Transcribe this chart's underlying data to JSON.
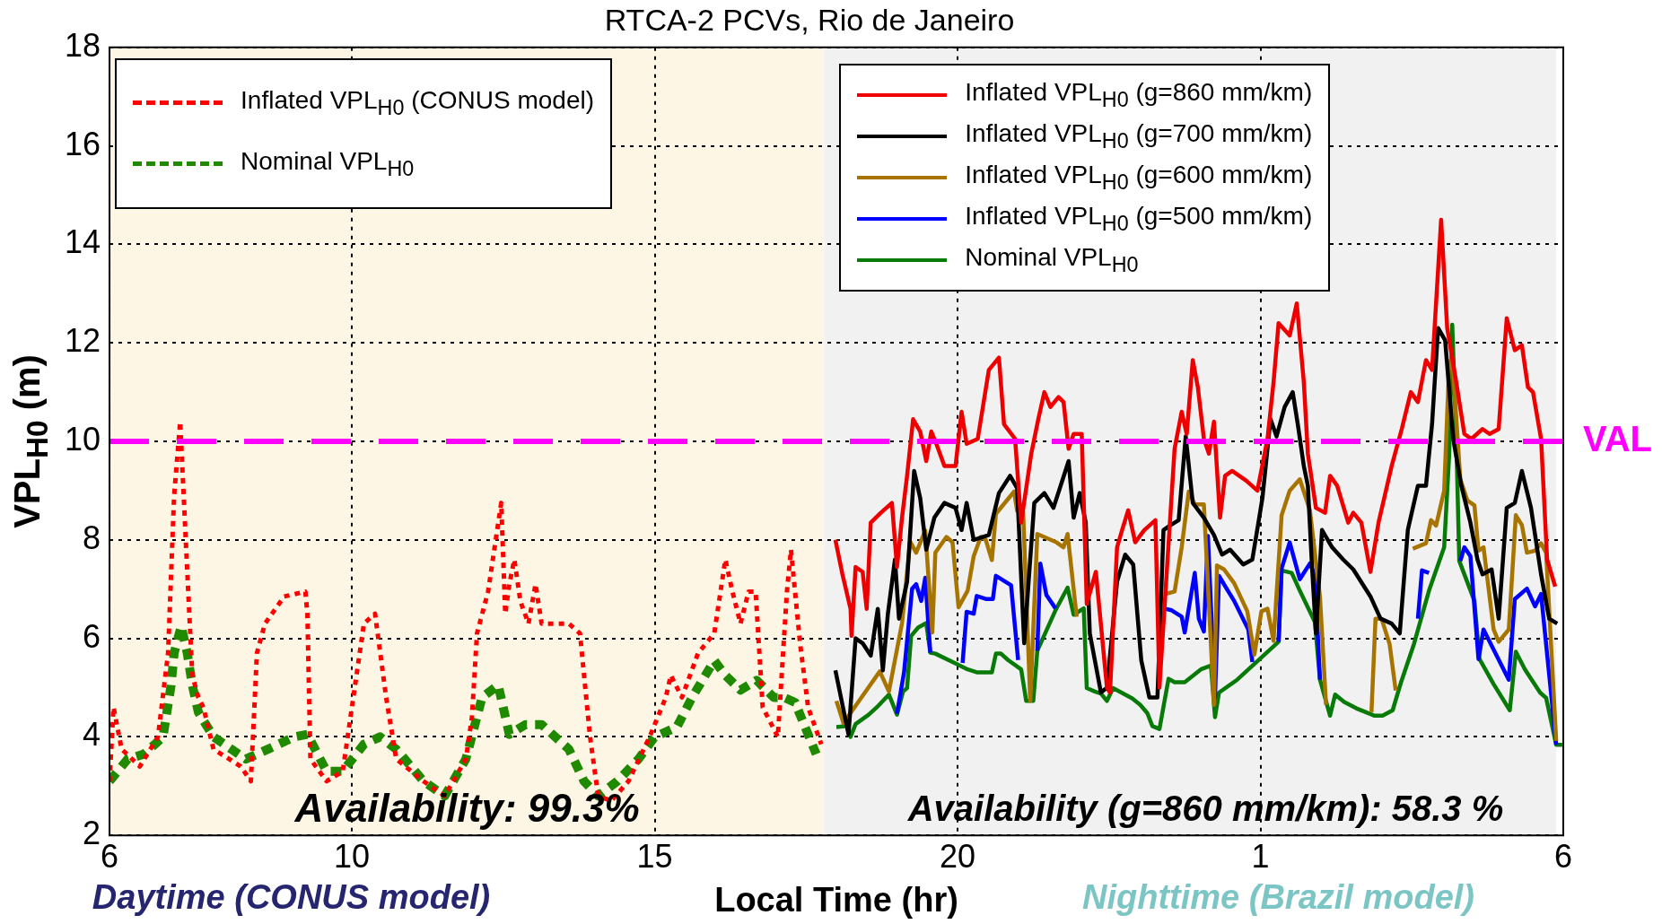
{
  "chart_data": {
    "type": "line",
    "title": "RTCA-2 PCVs, Rio de Janeiro",
    "xlabel": "Local Time (hr)",
    "ylabel": "VPL$_{H0}$ (m)",
    "xlim": [
      "--01-01T06:00",
      "--01-02T06:00"
    ],
    "xticks": [
      {
        "value": "--01-01T06:00",
        "label": "6"
      },
      {
        "value": "--01-01T10:00",
        "label": "10"
      },
      {
        "value": "--01-01T15:00",
        "label": "15"
      },
      {
        "value": "--01-01T20:00",
        "label": "20"
      },
      {
        "value": "--01-02T01:00",
        "label": "1"
      },
      {
        "value": "--01-02T06:00",
        "label": "6"
      }
    ],
    "ylim": [
      2,
      18
    ],
    "yticks": [
      2,
      4,
      6,
      8,
      10,
      12,
      14,
      16,
      18
    ],
    "grid": true,
    "legend": "top",
    "marker": "none",
    "bands": [
      {
        "axis": "x",
        "from": "--01-01T06:00",
        "to": "--01-01T17:48",
        "color": "#fdf6e4"
      },
      {
        "axis": "x",
        "from": "--01-01T17:48",
        "to": "--01-02T05:53",
        "color": "#f1f1f1"
      }
    ],
    "ref_lines": [
      {
        "axis": "y",
        "value": 10,
        "label": "VAL",
        "color": "#ff00ff",
        "line_style": "dashed"
      }
    ],
    "annotations": [
      "Availability: 99.3%",
      "Availability (g=860 mm/km): 58.3 %",
      "Daytime (CONUS model)",
      "Nighttime (Brazil model)"
    ],
    "series": [
      {
        "name": "Inflated VPL$_{H0}$ (CONUS model)",
        "color": "#ff0000",
        "line_style": "dotted",
        "x": [
          "--01-01T06:00",
          "--01-01T06:04",
          "--01-01T06:12",
          "--01-01T06:30",
          "--01-01T06:48",
          "--01-01T06:58",
          "--01-01T07:04",
          "--01-01T07:10",
          "--01-01T07:16",
          "--01-01T07:22",
          "--01-01T07:28",
          "--01-01T07:33",
          "--01-01T07:43",
          "--01-01T08:10",
          "--01-01T08:20",
          "--01-01T08:26",
          "--01-01T08:34",
          "--01-01T08:53",
          "--01-01T09:14",
          "--01-01T09:16",
          "--01-01T09:19",
          "--01-01T09:35",
          "--01-01T09:51",
          "--01-01T10:12",
          "--01-01T10:23",
          "--01-01T10:34",
          "--01-01T10:44",
          "--01-01T11:11",
          "--01-01T11:32",
          "--01-01T11:53",
          "--01-01T11:59",
          "--01-01T12:04",
          "--01-01T12:15",
          "--01-01T12:24",
          "--01-01T12:28",
          "--01-01T12:32",
          "--01-01T12:36",
          "--01-01T12:41",
          "--01-01T12:47",
          "--01-01T12:55",
          "--01-01T13:02",
          "--01-01T13:08",
          "--01-01T13:19",
          "--01-01T13:35",
          "--01-01T13:46",
          "--01-01T13:56",
          "--01-01T14:04",
          "--01-01T14:17",
          "--01-01T14:34",
          "--01-01T14:55",
          "--01-01T15:11",
          "--01-01T15:16",
          "--01-01T15:27",
          "--01-01T15:43",
          "--01-01T15:59",
          "--01-01T16:10",
          "--01-01T16:17",
          "--01-01T16:25",
          "--01-01T16:33",
          "--01-01T16:40",
          "--01-01T16:47",
          "--01-01T17:02",
          "--01-01T17:11",
          "--01-01T17:15",
          "--01-01T17:24",
          "--01-01T17:32",
          "--01-01T17:45"
        ],
        "values": [
          3.1,
          4.6,
          3.75,
          3.4,
          4.0,
          5.7,
          8.9,
          10.4,
          7.8,
          5.25,
          4.8,
          4.6,
          3.75,
          3.4,
          3.1,
          5.7,
          6.3,
          6.85,
          6.95,
          6.5,
          3.55,
          3.1,
          3.3,
          6.3,
          6.5,
          4.8,
          3.55,
          3.1,
          2.8,
          3.55,
          4.4,
          6.1,
          6.95,
          8.2,
          8.75,
          6.5,
          7.1,
          7.6,
          6.75,
          6.3,
          7.1,
          6.3,
          6.3,
          6.3,
          6.1,
          4.0,
          2.8,
          2.7,
          3.1,
          4.0,
          4.8,
          5.25,
          4.8,
          5.7,
          6.1,
          7.6,
          6.95,
          6.3,
          6.95,
          6.95,
          4.6,
          4.0,
          6.95,
          7.8,
          5.9,
          4.6,
          3.85
        ]
      },
      {
        "name": "Nominal VPL$_{H0}$",
        "color": "#1f8a00",
        "line_style": "dotted",
        "x": [
          "--01-01T06:00",
          "--01-01T06:18",
          "--01-01T06:34",
          "--01-01T06:53",
          "--01-01T07:01",
          "--01-01T07:04",
          "--01-01T07:11",
          "--01-01T07:17",
          "--01-01T07:22",
          "--01-01T07:28",
          "--01-01T07:43",
          "--01-01T08:15",
          "--01-01T08:37",
          "--01-01T09:03",
          "--01-01T09:16",
          "--01-01T09:35",
          "--01-01T09:51",
          "--01-01T10:12",
          "--01-01T10:28",
          "--01-01T10:44",
          "--01-01T11:11",
          "--01-01T11:32",
          "--01-01T11:53",
          "--01-01T12:09",
          "--01-01T12:25",
          "--01-01T12:36",
          "--01-01T12:52",
          "--01-01T13:08",
          "--01-01T13:35",
          "--01-01T13:50",
          "--01-01T14:04",
          "--01-01T14:23",
          "--01-01T14:44",
          "--01-01T15:00",
          "--01-01T15:22",
          "--01-01T15:37",
          "--01-01T15:59",
          "--01-01T16:10",
          "--01-01T16:25",
          "--01-01T16:41",
          "--01-01T16:58",
          "--01-01T17:08",
          "--01-01T17:19",
          "--01-01T17:29",
          "--01-01T17:40"
        ],
        "values": [
          3.1,
          3.55,
          3.65,
          4.0,
          5.05,
          5.7,
          6.25,
          5.7,
          5.05,
          4.5,
          4.0,
          3.55,
          3.75,
          4.0,
          4.05,
          3.3,
          3.3,
          3.85,
          4.0,
          3.75,
          3.1,
          2.8,
          3.55,
          4.8,
          5.05,
          4.05,
          4.25,
          4.25,
          3.75,
          3.1,
          2.8,
          3.1,
          3.55,
          4.0,
          4.2,
          4.8,
          5.55,
          5.25,
          4.95,
          5.15,
          4.8,
          4.8,
          4.7,
          4.2,
          3.65
        ]
      },
      {
        "name": "Inflated VPL$_{H0}$ (g=860 mm/km)",
        "color": "#ee0000",
        "line_style": "solid",
        "x": [
          "--01-01T17:59",
          "--01-01T18:06",
          "--01-01T18:14",
          "--01-01T18:15",
          "--01-01T18:19",
          "--01-01T18:26",
          "--01-01T18:30",
          "--01-01T18:34",
          "--01-01T18:44",
          "--01-01T18:55",
          "--01-01T19:00",
          "--01-01T19:05",
          "--01-01T19:10",
          "--01-01T19:16",
          "--01-01T19:23",
          "--01-01T19:29",
          "--01-01T19:34",
          "--01-01T19:39",
          "--01-01T19:47",
          "--01-01T19:58",
          "--01-01T20:04",
          "--01-01T20:09",
          "--01-01T20:20",
          "--01-01T20:31",
          "--01-01T20:41",
          "--01-01T20:46",
          "--01-01T20:57",
          "--01-01T21:03",
          "--01-01T21:13",
          "--01-01T21:20",
          "--01-01T21:26",
          "--01-01T21:32",
          "--01-01T21:40",
          "--01-01T21:45",
          "--01-01T21:50",
          "--01-01T21:55",
          "--01-01T22:03",
          "--01-01T22:08",
          "--01-01T22:17",
          "--01-01T22:28",
          "--01-01T22:31",
          "--01-01T22:38",
          "--01-01T22:43",
          "--01-01T22:49",
          "--01-01T22:56",
          "--01-01T23:05",
          "--01-01T23:16",
          "--01-01T23:20",
          "--01-01T23:26",
          "--01-01T23:35",
          "--01-01T23:42",
          "--01-01T23:47",
          "--01-01T23:53",
          "--01-01T23:58",
          "--01-02T00:04",
          "--01-02T00:09",
          "--01-02T00:14",
          "--01-02T00:20",
          "--01-02T00:25",
          "--01-02T00:32",
          "--01-02T00:46",
          "--01-02T00:57",
          "--01-02T01:07",
          "--01-02T01:13",
          "--01-02T01:18",
          "--01-02T01:29",
          "--01-02T01:36",
          "--01-02T01:43",
          "--01-02T01:47",
          "--01-02T01:55",
          "--01-02T02:04",
          "--01-02T02:09",
          "--01-02T02:16",
          "--01-02T02:27",
          "--01-02T02:32",
          "--01-02T02:40",
          "--01-02T02:49",
          "--01-02T02:57",
          "--01-02T03:10",
          "--01-02T03:20",
          "--01-02T03:29",
          "--01-02T03:36",
          "--01-02T03:44",
          "--01-02T03:50",
          "--01-02T03:59",
          "--01-02T04:05",
          "--01-02T04:14",
          "--01-02T04:22",
          "--01-02T04:29",
          "--01-02T04:40",
          "--01-02T04:47",
          "--01-02T04:56",
          "--01-02T05:04",
          "--01-02T05:12",
          "--01-02T05:19",
          "--01-02T05:25",
          "--01-02T05:30",
          "--01-02T05:38",
          "--01-02T05:44",
          "--01-02T05:52"
        ],
        "values": [
          8.0,
          7.3,
          6.6,
          6.05,
          7.45,
          7.35,
          6.6,
          8.35,
          8.55,
          8.75,
          7.45,
          8.45,
          9.3,
          10.45,
          10.2,
          9.6,
          10.2,
          9.95,
          9.5,
          9.5,
          10.6,
          9.95,
          10.05,
          11.45,
          11.7,
          10.35,
          10.05,
          8.35,
          9.75,
          10.45,
          11.0,
          10.7,
          10.9,
          10.8,
          9.85,
          10.15,
          10.15,
          6.7,
          7.35,
          5.0,
          4.9,
          7.85,
          8.2,
          8.6,
          7.95,
          8.2,
          8.4,
          5.0,
          6.95,
          9.85,
          10.6,
          10.15,
          11.65,
          11.1,
          10.05,
          9.75,
          10.4,
          8.45,
          9.3,
          9.4,
          9.2,
          9.0,
          10.05,
          11.2,
          12.4,
          12.15,
          12.8,
          11.2,
          9.75,
          8.65,
          8.55,
          9.3,
          9.1,
          8.35,
          8.55,
          8.35,
          7.35,
          8.35,
          9.5,
          10.25,
          11.0,
          10.8,
          11.65,
          11.45,
          14.5,
          12.3,
          11.2,
          10.15,
          10.05,
          10.25,
          10.15,
          10.25,
          12.5,
          11.85,
          11.95,
          11.1,
          11.0,
          10.05,
          7.6,
          7.05
        ]
      },
      {
        "name": "Inflated VPL$_{H0}$ (g=700 mm/km)",
        "color": "#000000",
        "line_style": "solid",
        "x": [
          "--01-01T17:59",
          "--01-01T18:12",
          "--01-01T18:19",
          "--01-01T18:26",
          "--01-01T18:34",
          "--01-01T18:41",
          "--01-01T18:46",
          "--01-01T18:51",
          "--01-01T18:58",
          "--01-01T19:02",
          "--01-01T19:10",
          "--01-01T19:17",
          "--01-01T19:23",
          "--01-01T19:29",
          "--01-01T19:37",
          "--01-01T19:47",
          "--01-01T19:58",
          "--01-01T20:04",
          "--01-01T20:09",
          "--01-01T20:16",
          "--01-01T20:31",
          "--01-01T20:41",
          "--01-01T20:52",
          "--01-01T20:59",
          "--01-01T21:06",
          "--01-01T21:16",
          "--01-01T21:26",
          "--01-01T21:35",
          "--01-01T21:50",
          "--01-01T21:55",
          "--01-01T22:01",
          "--01-01T22:07",
          "--01-01T22:11",
          "--01-01T22:22",
          "--01-01T22:28",
          "--01-01T22:38",
          "--01-01T22:46",
          "--01-01T22:54",
          "--01-01T23:02",
          "--01-01T23:10",
          "--01-01T23:18",
          "--01-01T23:24",
          "--01-01T23:31",
          "--01-01T23:39",
          "--01-01T23:46",
          "--01-01T23:53",
          "--01-02T00:04",
          "--01-02T00:14",
          "--01-02T00:22",
          "--01-02T00:30",
          "--01-02T00:43",
          "--01-02T00:52",
          "--01-02T01:02",
          "--01-02T01:10",
          "--01-02T01:16",
          "--01-02T01:24",
          "--01-02T01:32",
          "--01-02T01:37",
          "--01-02T01:43",
          "--01-02T01:47",
          "--01-02T01:51",
          "--01-02T01:55",
          "--01-02T02:01",
          "--01-02T02:11",
          "--01-02T02:22",
          "--01-02T02:32",
          "--01-02T02:49",
          "--01-02T02:59",
          "--01-02T03:10",
          "--01-02T03:18",
          "--01-02T03:26",
          "--01-02T03:36",
          "--01-02T03:44",
          "--01-02T03:50",
          "--01-02T03:56",
          "--01-02T04:03",
          "--01-02T04:11",
          "--01-02T04:19",
          "--01-02T04:28",
          "--01-02T04:35",
          "--01-02T04:40",
          "--01-02T04:49",
          "--01-02T04:56",
          "--01-02T05:04",
          "--01-02T05:12",
          "--01-02T05:19",
          "--01-02T05:28",
          "--01-02T05:38",
          "--01-02T05:46",
          "--01-02T05:54"
        ],
        "values": [
          5.35,
          4.05,
          6.0,
          5.9,
          5.65,
          6.6,
          5.35,
          6.5,
          7.6,
          6.4,
          7.15,
          9.4,
          8.85,
          7.8,
          8.45,
          8.75,
          8.65,
          8.2,
          8.75,
          8.0,
          8.1,
          8.95,
          9.3,
          9.05,
          5.9,
          8.75,
          8.95,
          8.65,
          9.6,
          8.45,
          8.95,
          8.35,
          6.1,
          4.9,
          5.0,
          7.15,
          7.7,
          7.5,
          5.55,
          4.8,
          4.8,
          8.2,
          8.3,
          8.4,
          10.1,
          8.75,
          8.45,
          8.1,
          7.7,
          7.8,
          7.5,
          7.6,
          8.85,
          10.45,
          10.1,
          10.7,
          11.0,
          10.35,
          9.5,
          9.1,
          7.5,
          6.1,
          8.2,
          7.85,
          7.6,
          7.4,
          6.85,
          6.4,
          6.3,
          6.1,
          8.2,
          9.1,
          9.1,
          10.35,
          12.3,
          12.05,
          10.05,
          9.1,
          8.35,
          7.6,
          7.3,
          7.4,
          6.4,
          8.65,
          8.75,
          9.4,
          8.65,
          7.3,
          6.4,
          6.3
        ]
      },
      {
        "name": "Inflated VPL$_{H0}$ (g=600 mm/km)",
        "color": "#a87400",
        "line_style": "solid",
        "x": [
          "--01-01T18:00",
          "--01-01T18:07",
          "--01-01T18:43",
          "--01-01T18:52",
          "--01-01T19:05",
          "--01-01T19:13",
          "--01-01T19:19",
          "--01-01T19:28",
          "--01-01T19:35",
          "--01-01T19:38",
          "--01-01T19:49",
          "--01-01T19:55",
          "--01-01T20:01",
          "--01-01T20:10",
          "--01-01T20:16",
          "--01-01T20:23",
          "--01-01T20:28",
          "--01-01T20:34",
          "--01-01T20:38",
          "--01-01T20:56",
          "--01-01T20:59",
          "--01-01T21:05",
          "--01-01T21:12",
          "--01-01T21:19",
          "--01-01T21:38",
          "--01-01T21:45",
          "--01-01T21:49",
          "--01-01T21:58",
          "--01-01T22:12",
          "--01-01T23:26",
          "--01-01T23:35",
          "--01-01T23:42",
          "--01-01T23:49",
          "--01-01T23:55",
          "--01-02T00:04",
          "--01-02T00:14",
          "--01-02T00:17",
          "--01-02T00:24",
          "--01-02T00:34",
          "--01-02T00:47",
          "--01-02T00:54",
          "--01-02T01:01",
          "--01-02T01:07",
          "--01-02T01:13",
          "--01-02T01:21",
          "--01-02T01:29",
          "--01-02T01:39",
          "--01-02T01:49",
          "--01-02T01:59",
          "--01-02T02:05",
          "--01-02T02:30",
          "--01-02T02:50",
          "--01-02T02:54",
          "--01-02T03:00",
          "--01-02T03:08",
          "--01-02T03:14",
          "--01-02T03:24",
          "--01-02T03:31",
          "--01-02T03:44",
          "--01-02T03:49",
          "--01-02T03:54",
          "--01-02T04:02",
          "--01-02T04:07",
          "--01-02T04:10",
          "--01-02T04:18",
          "--01-02T04:25",
          "--01-02T04:32",
          "--01-02T04:36",
          "--01-02T04:41",
          "--01-02T04:51",
          "--01-02T04:56",
          "--01-02T05:06",
          "--01-02T05:13",
          "--01-02T05:19",
          "--01-02T05:24",
          "--01-02T05:32",
          "--01-02T05:38",
          "--01-02T05:43",
          "--01-02T05:53"
        ],
        "values": [
          4.73,
          4.28,
          5.33,
          4.92,
          6.31,
          7.97,
          7.74,
          8.19,
          6.12,
          7.74,
          8.06,
          7.95,
          6.63,
          6.97,
          7.67,
          8.06,
          8.0,
          7.59,
          8.53,
          8.98,
          8.59,
          8.57,
          4.73,
          8.12,
          7.95,
          7.85,
          8.12,
          6.44,
          null,
          6.9,
          6.95,
          7.85,
          8.98,
          8.72,
          8.72,
          4.65,
          7.48,
          7.4,
          7.12,
          6.55,
          5.67,
          6.55,
          6.6,
          5.95,
          8.5,
          9.0,
          9.23,
          8.6,
          6.84,
          4.65,
          null,
          4.5,
          6.4,
          6.4,
          5.88,
          4.94,
          null,
          7.82,
          7.93,
          8.4,
          8.29,
          9.0,
          11.58,
          11.72,
          9.23,
          8.8,
          8.7,
          7.78,
          7.85,
          6.18,
          5.93,
          6.18,
          8.5,
          8.3,
          7.74,
          7.78,
          7.93,
          7.74,
          3.92
        ]
      },
      {
        "name": "Inflated VPL$_{H0}$ (g=500 mm/km)",
        "color": "#0000ff",
        "line_style": "solid",
        "x": [
          "--01-01T19:00",
          "--01-01T19:07",
          "--01-01T19:15",
          "--01-01T19:19",
          "--01-01T19:24",
          "--01-01T19:28",
          "--01-01T19:33",
          "--01-01T19:48",
          "--01-01T20:05",
          "--01-01T20:09",
          "--01-01T20:16",
          "--01-01T20:19",
          "--01-01T20:28",
          "--01-01T20:35",
          "--01-01T20:38",
          "--01-01T20:53",
          "--01-01T21:00",
          "--01-01T21:12",
          "--01-01T21:19",
          "--01-01T21:22",
          "--01-01T21:28",
          "--01-01T21:37",
          "--01-01T22:30",
          "--01-01T23:24",
          "--01-01T23:32",
          "--01-01T23:42",
          "--01-01T23:45",
          "--01-01T23:55",
          "--01-01T23:59",
          "--01-02T00:04",
          "--01-02T00:08",
          "--01-02T00:15",
          "--01-02T00:19",
          "--01-02T00:25",
          "--01-02T00:34",
          "--01-02T00:48",
          "--01-02T00:52",
          "--01-02T01:06",
          "--01-02T01:18",
          "--01-02T01:21",
          "--01-02T01:29",
          "--01-02T01:39",
          "--01-02T01:49",
          "--01-02T01:54",
          "--01-02T01:59",
          "--01-02T02:48",
          "--01-02T03:36",
          "--01-02T03:40",
          "--01-02T03:47",
          "--01-02T04:06",
          "--01-02T04:18",
          "--01-02T04:22",
          "--01-02T04:28",
          "--01-02T04:36",
          "--01-02T04:41",
          "--01-02T05:06",
          "--01-02T05:12",
          "--01-02T05:24",
          "--01-02T05:32",
          "--01-02T05:38",
          "--01-02T05:53"
        ],
        "values": [
          4.47,
          5.31,
          7.01,
          7.1,
          6.76,
          7.23,
          5.71,
          null,
          5.5,
          6.54,
          6.5,
          6.86,
          6.8,
          6.8,
          7.27,
          7.08,
          5.56,
          null,
          5.75,
          7.52,
          6.88,
          6.61,
          null,
          6.61,
          6.57,
          6.44,
          6.12,
          7.33,
          6.4,
          6.14,
          8.08,
          4.79,
          7.27,
          7.06,
          6.76,
          6.18,
          5.52,
          null,
          5.93,
          7.42,
          7.95,
          7.2,
          7.52,
          7.27,
          5.16,
          null,
          6.4,
          7.38,
          7.33,
          null,
          7.57,
          7.85,
          7.67,
          5.58,
          6.18,
          5.16,
          6.8,
          7.01,
          6.65,
          6.9,
          3.84
        ]
      },
      {
        "name": "Nominal VPL$_{H0}$",
        "color": "#087a08",
        "line_style": "solid",
        "x": [
          "--01-01T18:00",
          "--01-01T18:10",
          "--01-01T18:14",
          "--01-01T18:19",
          "--01-01T18:32",
          "--01-01T18:40",
          "--01-01T18:52",
          "--01-01T19:00",
          "--01-01T19:06",
          "--01-01T19:10",
          "--01-01T19:14",
          "--01-01T19:21",
          "--01-01T19:29",
          "--01-01T19:33",
          "--01-01T19:38",
          "--01-01T19:57",
          "--01-01T20:10",
          "--01-01T20:19",
          "--01-01T20:34",
          "--01-01T20:38",
          "--01-01T20:43",
          "--01-01T20:50",
          "--01-01T21:03",
          "--01-01T21:08",
          "--01-01T21:15",
          "--01-01T21:19",
          "--01-01T21:37",
          "--01-01T21:49",
          "--01-01T21:55",
          "--01-01T22:05",
          "--01-01T22:08",
          "--01-01T22:16",
          "--01-01T22:22",
          "--01-01T22:28",
          "--01-01T22:34",
          "--01-01T22:53",
          "--01-01T23:01",
          "--01-01T23:08",
          "--01-01T23:13",
          "--01-01T23:20",
          "--01-01T23:29",
          "--01-01T23:35",
          "--01-01T23:45",
          "--01-02T00:01",
          "--01-02T00:11",
          "--01-02T00:15",
          "--01-02T00:19",
          "--01-02T00:37",
          "--01-02T01:18",
          "--01-02T01:21",
          "--01-02T01:31",
          "--01-02T01:39",
          "--01-02T01:54",
          "--01-02T01:59",
          "--01-02T02:09",
          "--01-02T02:14",
          "--01-02T02:23",
          "--01-02T02:35",
          "--01-02T02:53",
          "--01-02T03:01",
          "--01-02T03:11",
          "--01-02T03:19",
          "--01-02T03:32",
          "--01-02T03:47",
          "--01-02T04:02",
          "--01-02T04:07",
          "--01-02T04:10",
          "--01-02T04:14",
          "--01-02T04:17",
          "--01-02T04:32",
          "--01-02T04:37",
          "--01-02T04:51",
          "--01-02T05:07",
          "--01-02T05:13",
          "--01-02T05:22",
          "--01-02T05:37",
          "--01-02T05:43",
          "--01-02T05:53",
          "--01-02T05:59"
        ],
        "values": [
          4.2,
          4.22,
          4.0,
          4.26,
          4.45,
          4.6,
          4.86,
          4.45,
          4.92,
          4.99,
          6.05,
          6.22,
          6.31,
          5.71,
          5.69,
          5.5,
          5.37,
          5.31,
          5.31,
          5.69,
          5.69,
          5.56,
          5.37,
          4.73,
          4.73,
          5.75,
          6.57,
          7.03,
          6.48,
          6.61,
          4.99,
          4.92,
          4.88,
          4.73,
          4.99,
          4.78,
          4.65,
          4.48,
          4.22,
          4.16,
          5.18,
          5.11,
          5.11,
          5.37,
          5.45,
          4.4,
          4.9,
          5.16,
          5.93,
          7.38,
          7.33,
          6.97,
          6.33,
          5.16,
          4.43,
          4.86,
          4.71,
          4.58,
          4.43,
          4.43,
          4.54,
          5.09,
          5.88,
          6.97,
          7.85,
          9.74,
          12.37,
          10.04,
          7.57,
          6.76,
          5.58,
          5.07,
          4.54,
          5.73,
          5.37,
          4.9,
          4.79,
          3.84,
          3.84
        ]
      }
    ]
  }
}
